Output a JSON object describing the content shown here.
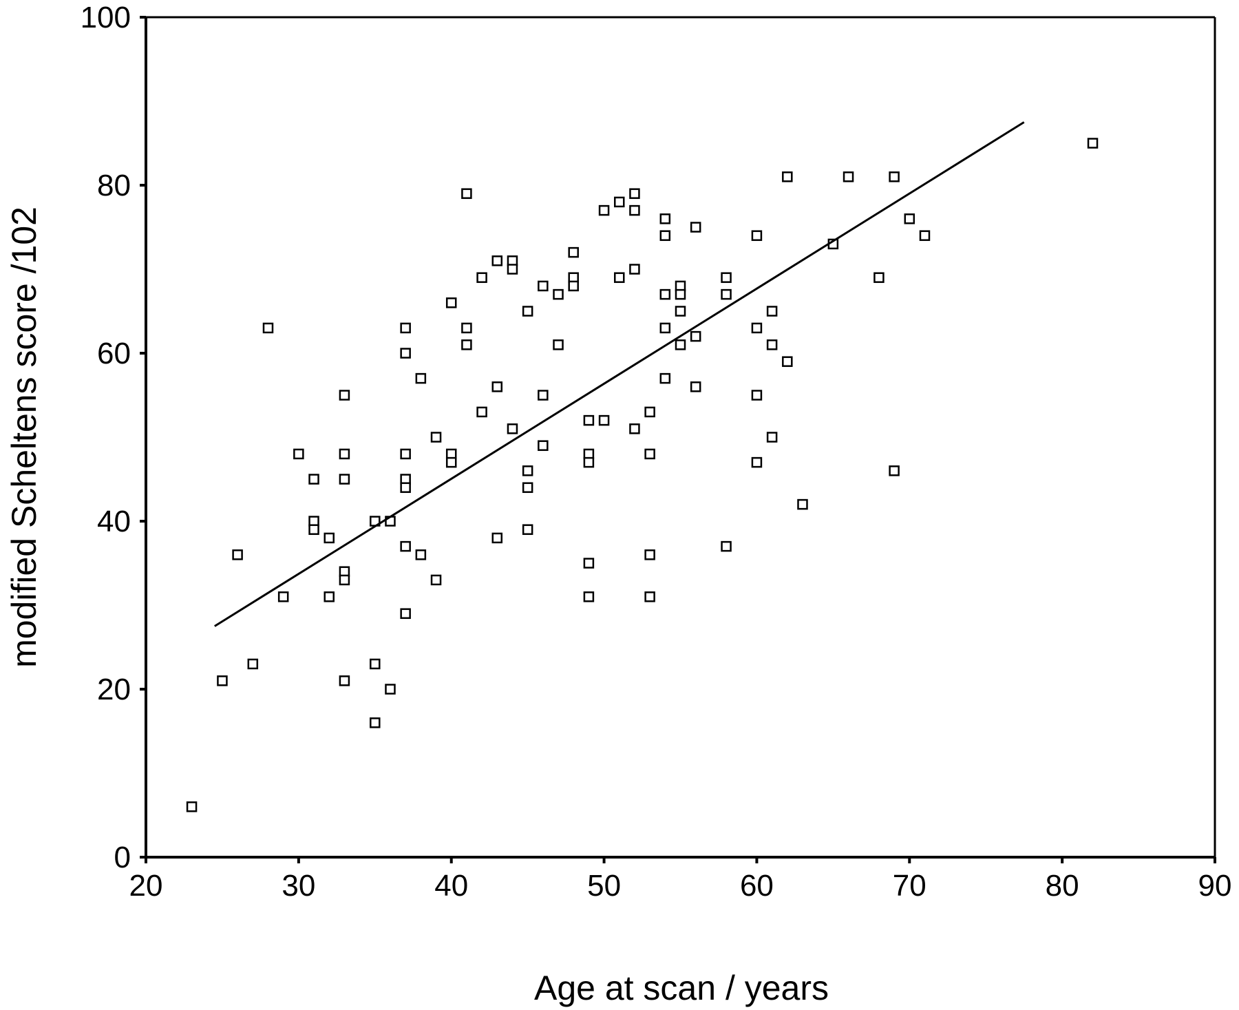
{
  "chart_data": {
    "type": "scatter",
    "title": "",
    "xlabel": "Age at scan / years",
    "ylabel": "modified Scheltens score /102",
    "xlim": [
      20,
      90
    ],
    "ylim": [
      0,
      100
    ],
    "xticks": [
      "20",
      "30",
      "40",
      "50",
      "60",
      "70",
      "80",
      "90"
    ],
    "yticks": [
      "0",
      "20",
      "40",
      "60",
      "80",
      "100"
    ],
    "grid": false,
    "legend": "none",
    "marker": "open-square",
    "points": [
      [
        23,
        6
      ],
      [
        25,
        21
      ],
      [
        26,
        36
      ],
      [
        27,
        23
      ],
      [
        28,
        63
      ],
      [
        29,
        31
      ],
      [
        30,
        48
      ],
      [
        31,
        45
      ],
      [
        31,
        40
      ],
      [
        31,
        39
      ],
      [
        32,
        38
      ],
      [
        32,
        31
      ],
      [
        33,
        55
      ],
      [
        33,
        48
      ],
      [
        33,
        45
      ],
      [
        33,
        34
      ],
      [
        33,
        33
      ],
      [
        33,
        21
      ],
      [
        35,
        40
      ],
      [
        35,
        23
      ],
      [
        35,
        16
      ],
      [
        36,
        40
      ],
      [
        36,
        20
      ],
      [
        37,
        63
      ],
      [
        37,
        60
      ],
      [
        37,
        48
      ],
      [
        37,
        45
      ],
      [
        37,
        44
      ],
      [
        37,
        37
      ],
      [
        37,
        29
      ],
      [
        38,
        57
      ],
      [
        38,
        36
      ],
      [
        39,
        50
      ],
      [
        39,
        33
      ],
      [
        40,
        66
      ],
      [
        40,
        48
      ],
      [
        40,
        47
      ],
      [
        41,
        79
      ],
      [
        41,
        63
      ],
      [
        41,
        61
      ],
      [
        42,
        69
      ],
      [
        42,
        53
      ],
      [
        43,
        71
      ],
      [
        43,
        56
      ],
      [
        43,
        38
      ],
      [
        44,
        71
      ],
      [
        44,
        70
      ],
      [
        44,
        51
      ],
      [
        45,
        65
      ],
      [
        45,
        46
      ],
      [
        45,
        44
      ],
      [
        45,
        39
      ],
      [
        46,
        68
      ],
      [
        46,
        55
      ],
      [
        46,
        49
      ],
      [
        47,
        67
      ],
      [
        47,
        61
      ],
      [
        48,
        72
      ],
      [
        48,
        69
      ],
      [
        48,
        68
      ],
      [
        49,
        52
      ],
      [
        49,
        48
      ],
      [
        49,
        47
      ],
      [
        49,
        35
      ],
      [
        49,
        31
      ],
      [
        50,
        77
      ],
      [
        50,
        52
      ],
      [
        51,
        78
      ],
      [
        51,
        69
      ],
      [
        52,
        79
      ],
      [
        52,
        77
      ],
      [
        52,
        70
      ],
      [
        52,
        51
      ],
      [
        53,
        53
      ],
      [
        53,
        48
      ],
      [
        53,
        36
      ],
      [
        53,
        31
      ],
      [
        54,
        76
      ],
      [
        54,
        74
      ],
      [
        54,
        67
      ],
      [
        54,
        63
      ],
      [
        54,
        57
      ],
      [
        55,
        68
      ],
      [
        55,
        67
      ],
      [
        55,
        65
      ],
      [
        55,
        61
      ],
      [
        56,
        75
      ],
      [
        56,
        62
      ],
      [
        56,
        56
      ],
      [
        58,
        69
      ],
      [
        58,
        67
      ],
      [
        58,
        37
      ],
      [
        60,
        74
      ],
      [
        60,
        63
      ],
      [
        60,
        55
      ],
      [
        60,
        47
      ],
      [
        61,
        65
      ],
      [
        61,
        61
      ],
      [
        61,
        50
      ],
      [
        62,
        81
      ],
      [
        62,
        59
      ],
      [
        63,
        42
      ],
      [
        65,
        73
      ],
      [
        66,
        81
      ],
      [
        68,
        69
      ],
      [
        69,
        81
      ],
      [
        69,
        46
      ],
      [
        70,
        76
      ],
      [
        71,
        74
      ],
      [
        82,
        85
      ]
    ],
    "fit_line": {
      "x": [
        24.5,
        77.5
      ],
      "y": [
        27.5,
        87.5
      ]
    }
  }
}
